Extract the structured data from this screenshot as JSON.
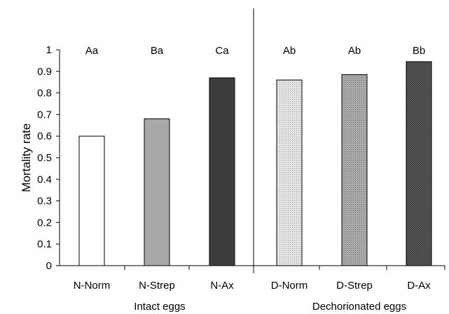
{
  "chart_data": {
    "type": "bar",
    "ylabel": "Mortality rate",
    "ylim": [
      0,
      1
    ],
    "yticks": [
      "0",
      "0.1",
      "0.2",
      "0.3",
      "0.4",
      "0.5",
      "0.6",
      "0.7",
      "0.8",
      "0.9",
      "1"
    ],
    "grid": false,
    "categories": [
      "N-Norm",
      "N-Strep",
      "N-Ax",
      "D-Norm",
      "D-Strep",
      "D-Ax"
    ],
    "values": [
      0.6,
      0.68,
      0.87,
      0.86,
      0.885,
      0.945
    ],
    "significance_labels": [
      "Aa",
      "Ba",
      "Ca",
      "Ab",
      "Ab",
      "Bb"
    ],
    "bar_styles": [
      "white",
      "light-gray",
      "dark-gray",
      "light-dotted",
      "medium-dotted",
      "dark-dotted"
    ],
    "groups": [
      {
        "label": "Intact eggs"
      },
      {
        "label": "Dechorionated eggs"
      }
    ]
  },
  "colors": {
    "axis": "#000000",
    "bar_stroke": "#000000",
    "white_fill": "#ffffff",
    "light_gray_fill": "#a8a8a8",
    "dark_gray_fill": "#3d3d3d"
  }
}
